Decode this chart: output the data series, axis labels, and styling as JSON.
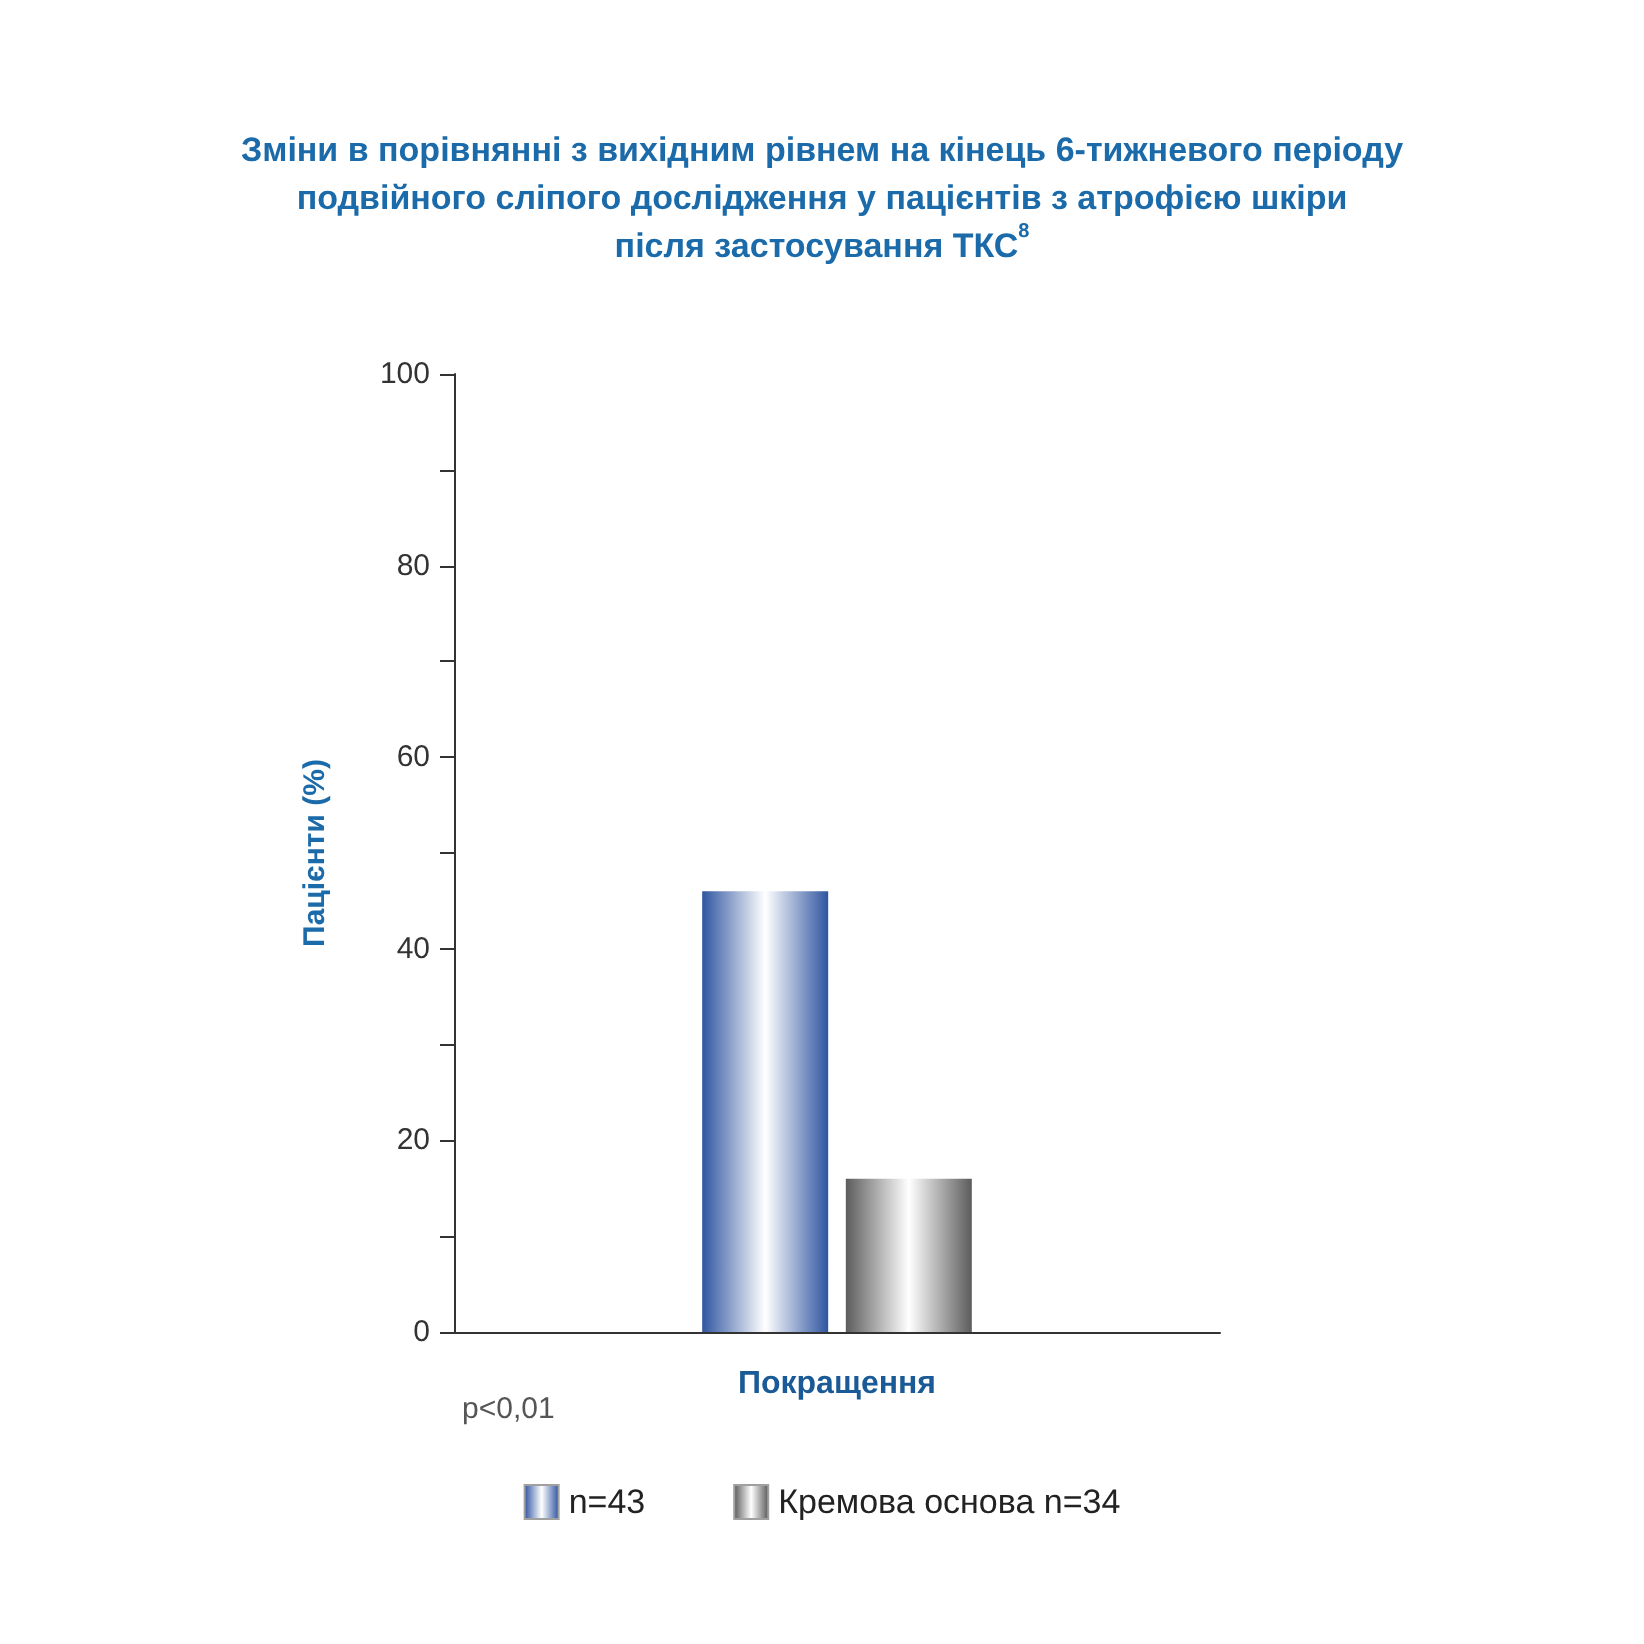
{
  "chart_data": {
    "type": "bar",
    "title": "Зміни в порівнянні з вихідним рівнем на кінець 6-тижневого періоду\nподвійного сліпого дослідження у пацієнтів з атрофією шкіри\nпісля застосування ТКС$^{8}$",
    "ylabel": "Пацієнти (%)",
    "categories": [
      "Покращення"
    ],
    "series": [
      {
        "name": "n=43",
        "color": "#2f55a0",
        "values": [
          46
        ]
      },
      {
        "name": "Кремова основа n=34",
        "color": "#5c5c5c",
        "values": [
          16
        ]
      }
    ],
    "ylim": [
      0,
      100
    ],
    "yticks": [
      0,
      {
        "value": 10,
        "label": null
      },
      20,
      {
        "value": 30,
        "label": null
      },
      40,
      {
        "value": 50,
        "label": null
      },
      60,
      {
        "value": 70,
        "label": null
      },
      80,
      {
        "value": 90,
        "label": null
      },
      100
    ],
    "legend": "bottom",
    "annotations": [
      "p<0,01"
    ]
  }
}
